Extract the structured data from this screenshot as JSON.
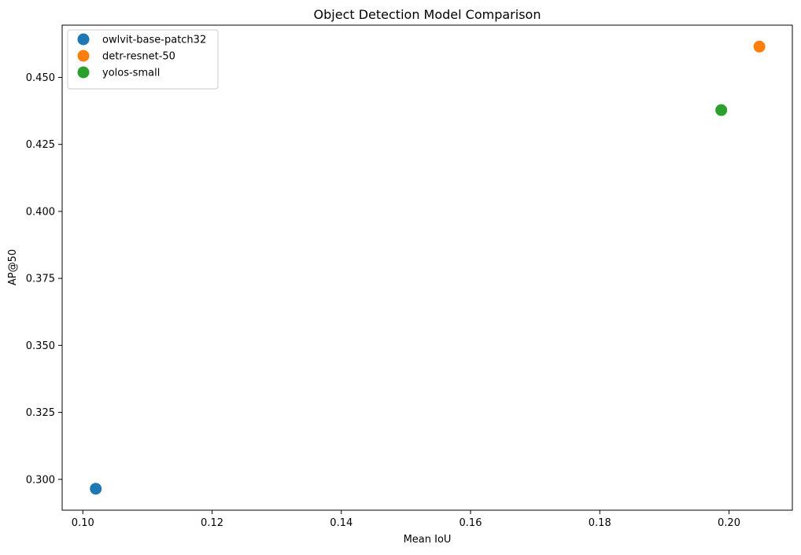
{
  "chart_data": {
    "type": "scatter",
    "title": "Object Detection Model Comparison",
    "xlabel": "Mean IoU",
    "ylabel": "AP@50",
    "xlim": [
      0.0968,
      0.2098
    ],
    "ylim": [
      0.2885,
      0.4695
    ],
    "xticks": [
      0.1,
      0.12,
      0.14,
      0.16,
      0.18,
      0.2
    ],
    "xtick_labels": [
      "0.10",
      "0.12",
      "0.14",
      "0.16",
      "0.18",
      "0.20"
    ],
    "yticks": [
      0.3,
      0.325,
      0.35,
      0.375,
      0.4,
      0.425,
      0.45
    ],
    "ytick_labels": [
      "0.300",
      "0.325",
      "0.350",
      "0.375",
      "0.400",
      "0.425",
      "0.450"
    ],
    "grid": false,
    "legend_position": "upper-left",
    "series": [
      {
        "name": "owlvit-base-patch32",
        "color": "#1f77b4",
        "x": [
          0.102
        ],
        "y": [
          0.2965
        ]
      },
      {
        "name": "detr-resnet-50",
        "color": "#ff7f0e",
        "x": [
          0.2047
        ],
        "y": [
          0.4615
        ]
      },
      {
        "name": "yolos-small",
        "color": "#2ca02c",
        "x": [
          0.1988
        ],
        "y": [
          0.4378
        ]
      }
    ]
  }
}
